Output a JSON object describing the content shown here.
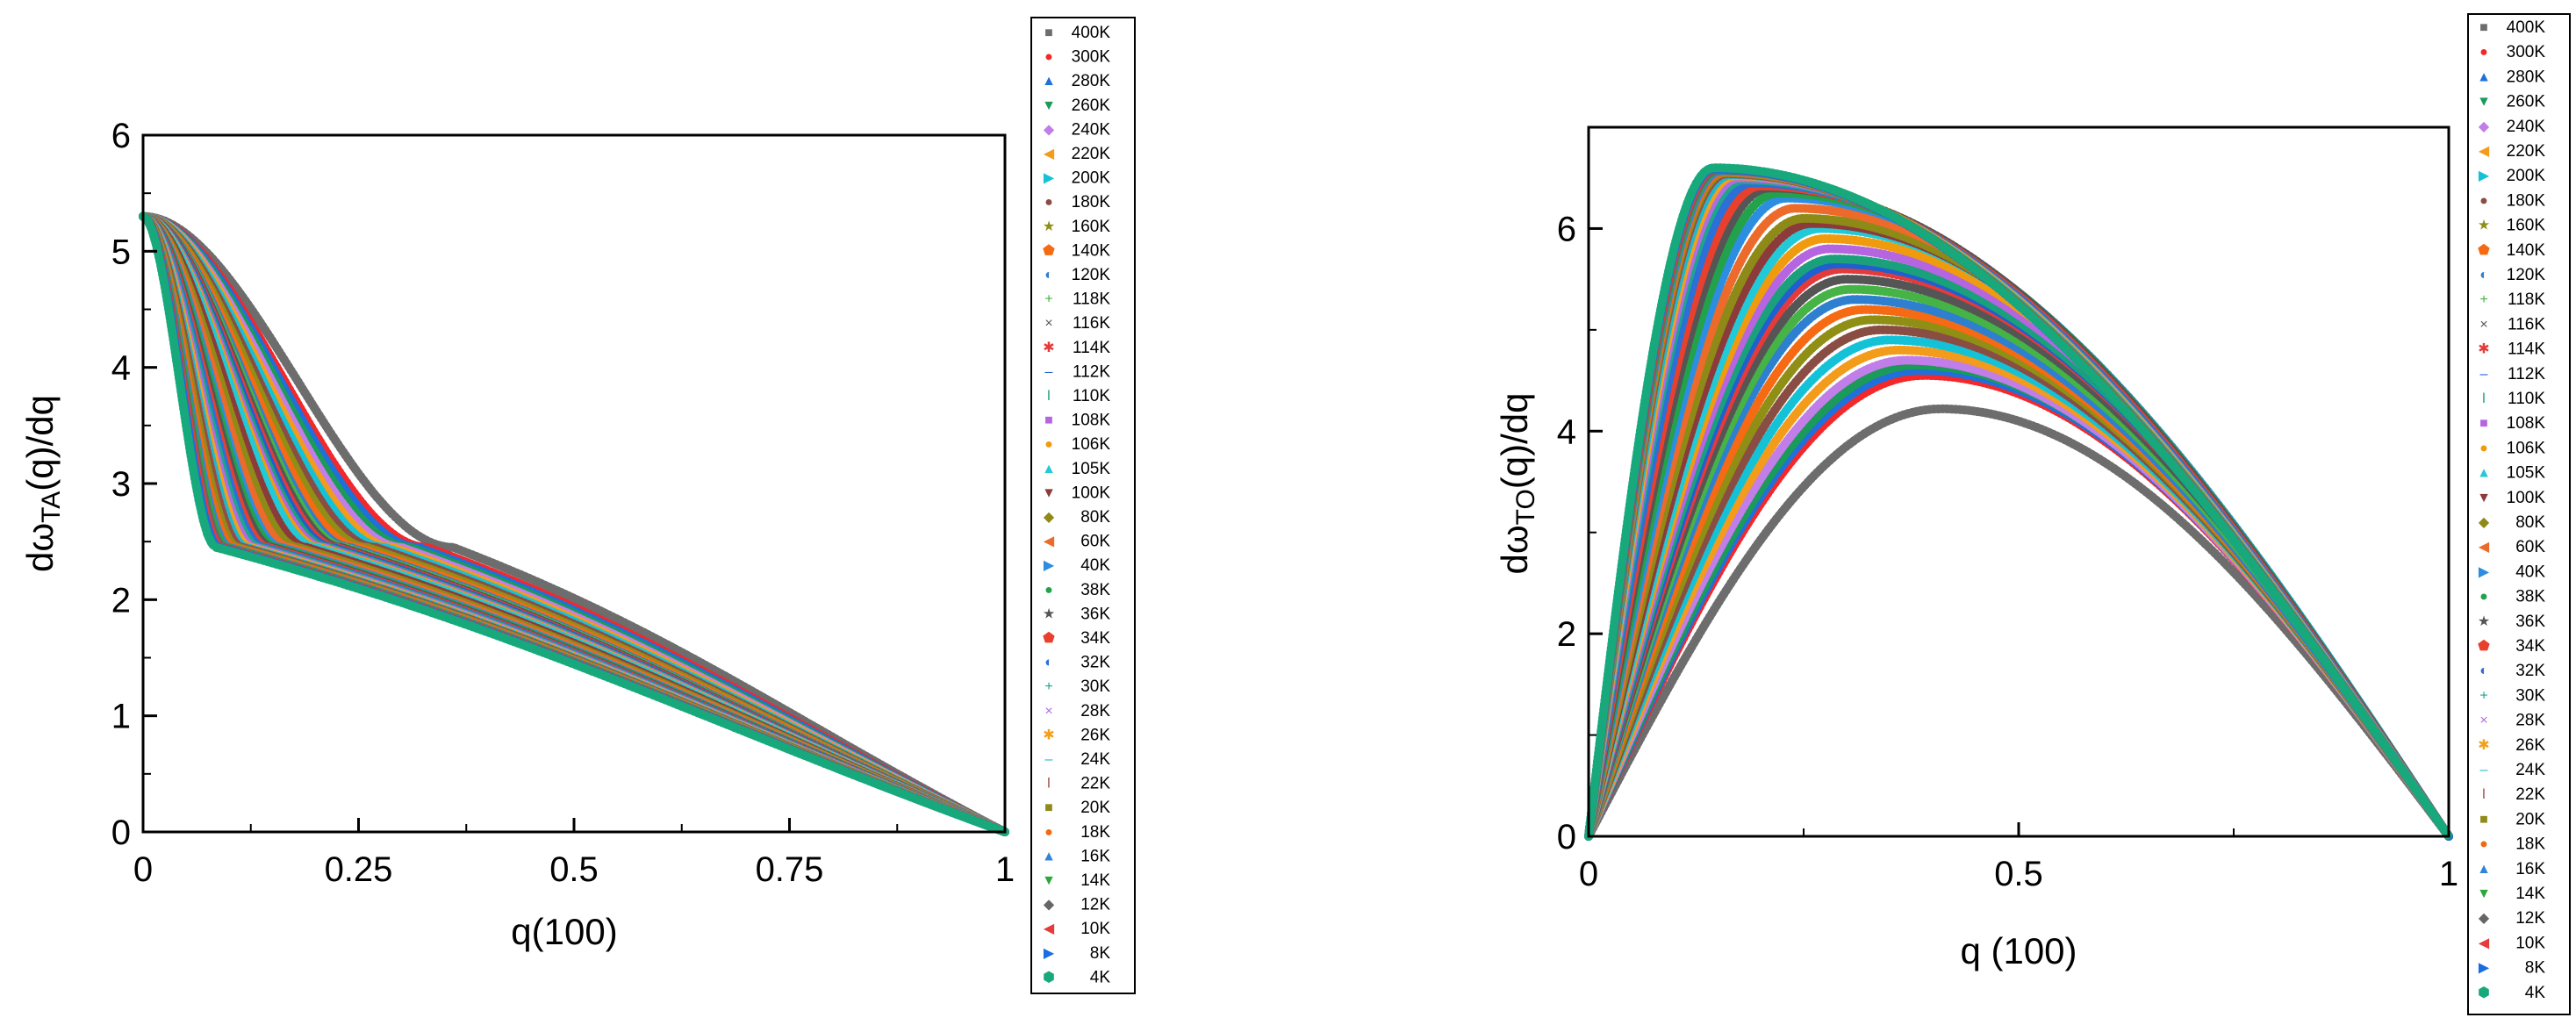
{
  "chart_data": [
    {
      "id": "ta",
      "type": "line",
      "title": "",
      "xlabel": "q(100)",
      "ylabel": {
        "prefix": "dω",
        "sub": "TA",
        "suffix": "(q)/dq"
      },
      "xlim": [
        0,
        1
      ],
      "ylim": [
        0,
        6
      ],
      "xticks": [
        0,
        0.25,
        0.5,
        0.75,
        1
      ],
      "xtick_labels": [
        "0",
        "0.25",
        "0.5",
        "0.75",
        "1"
      ],
      "yticks": [
        0,
        1,
        2,
        3,
        4,
        5,
        6
      ],
      "ytick_labels": [
        "0",
        "1",
        "2",
        "3",
        "4",
        "5",
        "6"
      ],
      "model": {
        "y0": 5.3,
        "plateau": 2.45,
        "end": 0.03
      },
      "series_names": [
        "400K",
        "300K",
        "280K",
        "260K",
        "240K",
        "220K",
        "200K",
        "180K",
        "160K",
        "140K",
        "120K",
        "118K",
        "116K",
        "114K",
        "112K",
        "110K",
        "108K",
        "106K",
        "105K",
        "100K",
        "80K",
        "60K",
        "40K",
        "38K",
        "36K",
        "34K",
        "32K",
        "30K",
        "28K",
        "26K",
        "24K",
        "22K",
        "20K",
        "18K",
        "16K",
        "14K",
        "12K",
        "10K",
        "8K",
        "4K"
      ],
      "series_param": [
        0.36,
        0.33,
        0.32,
        0.31,
        0.3,
        0.29,
        0.28,
        0.27,
        0.26,
        0.25,
        0.24,
        0.235,
        0.23,
        0.225,
        0.22,
        0.215,
        0.21,
        0.205,
        0.2,
        0.19,
        0.18,
        0.17,
        0.16,
        0.155,
        0.15,
        0.145,
        0.14,
        0.135,
        0.13,
        0.125,
        0.12,
        0.115,
        0.11,
        0.105,
        0.1,
        0.097,
        0.094,
        0.091,
        0.088,
        0.085
      ],
      "legend_position": "right"
    },
    {
      "id": "to",
      "type": "line",
      "title": "",
      "xlabel": "q (100)",
      "ylabel": {
        "prefix": "dω",
        "sub": "TO",
        "suffix": "(q)/dq"
      },
      "xlim": [
        0,
        1
      ],
      "ylim": [
        0,
        7
      ],
      "xticks": [
        0,
        0.5,
        1
      ],
      "xtick_labels": [
        "0",
        "0.5",
        "1"
      ],
      "yticks": [
        0,
        2,
        4,
        6
      ],
      "ytick_labels": [
        "0",
        "2",
        "4",
        "6"
      ],
      "series_names": [
        "400K",
        "300K",
        "280K",
        "260K",
        "240K",
        "220K",
        "200K",
        "180K",
        "160K",
        "140K",
        "120K",
        "118K",
        "116K",
        "114K",
        "112K",
        "110K",
        "108K",
        "106K",
        "105K",
        "100K",
        "80K",
        "60K",
        "40K",
        "38K",
        "36K",
        "34K",
        "32K",
        "30K",
        "28K",
        "26K",
        "24K",
        "22K",
        "20K",
        "18K",
        "16K",
        "14K",
        "12K",
        "10K",
        "8K",
        "4K"
      ],
      "series_peak_q": [
        0.41,
        0.39,
        0.385,
        0.38,
        0.37,
        0.36,
        0.35,
        0.34,
        0.33,
        0.32,
        0.31,
        0.305,
        0.3,
        0.295,
        0.29,
        0.285,
        0.28,
        0.275,
        0.27,
        0.26,
        0.25,
        0.24,
        0.23,
        0.22,
        0.21,
        0.2,
        0.19,
        0.18,
        0.175,
        0.17,
        0.165,
        0.16,
        0.158,
        0.156,
        0.154,
        0.152,
        0.15,
        0.148,
        0.146,
        0.145
      ],
      "series_peak_value": [
        4.22,
        4.55,
        4.6,
        4.65,
        4.7,
        4.8,
        4.9,
        5.0,
        5.1,
        5.2,
        5.3,
        5.4,
        5.5,
        5.6,
        5.65,
        5.7,
        5.8,
        5.9,
        6.0,
        6.05,
        6.1,
        6.2,
        6.3,
        6.35,
        6.4,
        6.42,
        6.45,
        6.48,
        6.5,
        6.52,
        6.53,
        6.54,
        6.55,
        6.56,
        6.57,
        6.58,
        6.58,
        6.59,
        6.59,
        6.6
      ],
      "legend_position": "right"
    }
  ],
  "colors": [
    "#6d6d6d",
    "#f2282b",
    "#1f6fdc",
    "#1b9a5a",
    "#c27ee8",
    "#f39b1a",
    "#14c2d8",
    "#8a4d43",
    "#8f8f16",
    "#f56a12",
    "#2e7fd0",
    "#45b345",
    "#555555",
    "#e53a3a",
    "#1f5fd0",
    "#1aa07a",
    "#b565e0",
    "#ef9b0d",
    "#22c9d6",
    "#8c3a3a",
    "#8d8a18",
    "#ec6a2a",
    "#2d8de0",
    "#22a24a",
    "#555555",
    "#e8402d",
    "#2c6fd6",
    "#1ea58c",
    "#b06de2",
    "#f2a01a",
    "#1fb7cc",
    "#9a4a44",
    "#8f8a1a",
    "#f06a15",
    "#3384d8",
    "#2ea63d",
    "#666666",
    "#e53b3b",
    "#1a6de0",
    "#17a97c"
  ],
  "markers": [
    "■",
    "●",
    "▲",
    "▼",
    "◆",
    "◀",
    "▶",
    "●",
    "★",
    "⬟",
    "◐",
    "+",
    "×",
    "✱",
    "–",
    "ǀ",
    "■",
    "●",
    "▲",
    "▼",
    "◆",
    "◀",
    "▶",
    "●",
    "★",
    "⬟",
    "◐",
    "+",
    "×",
    "✱",
    "–",
    "ǀ",
    "■",
    "●",
    "▲",
    "▼",
    "◆",
    "◀",
    "▶",
    "⬢"
  ]
}
